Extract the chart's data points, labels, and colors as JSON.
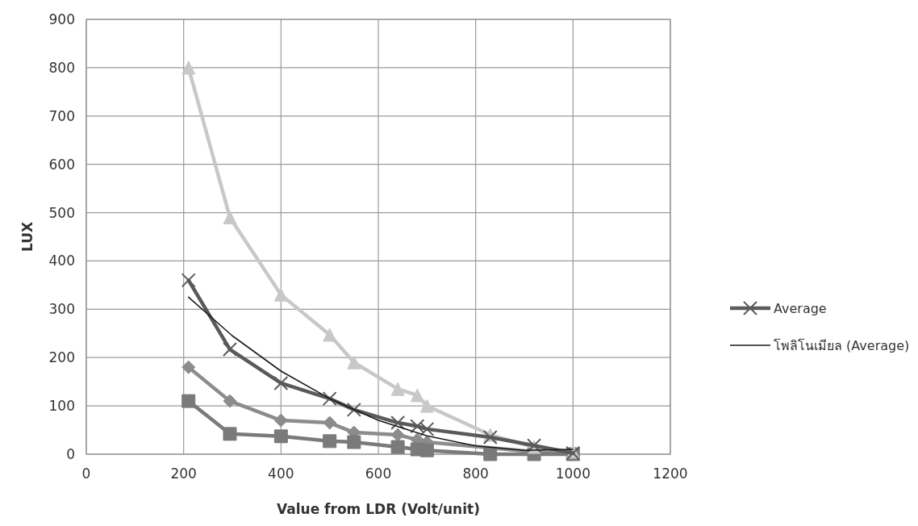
{
  "chart_data": {
    "type": "line",
    "xlabel": "Value from LDR (Volt/unit)",
    "ylabel": "LUX",
    "xlim": [
      0,
      1200
    ],
    "xticks": [
      0,
      200,
      400,
      600,
      800,
      1000,
      1200
    ],
    "ylim": [
      0,
      900
    ],
    "yticks": [
      0,
      100,
      200,
      300,
      400,
      500,
      600,
      700,
      800,
      900
    ],
    "grid": true,
    "legend": "right",
    "x": [
      210,
      295,
      400,
      500,
      550,
      640,
      680,
      700,
      830,
      920,
      1000
    ],
    "series": [
      {
        "color": "#8c8c8c",
        "marker": "diamond",
        "values": [
          180,
          110,
          70,
          65,
          45,
          40,
          30,
          25,
          null,
          5,
          0
        ]
      },
      {
        "color": "#7a7a7a",
        "marker": "square",
        "values": [
          110,
          42,
          37,
          27,
          25,
          15,
          10,
          8,
          0,
          0,
          0
        ]
      },
      {
        "color": "#c8c8c8",
        "marker": "triangle",
        "values": [
          800,
          490,
          330,
          247,
          190,
          135,
          122,
          100,
          40,
          15,
          5
        ]
      },
      {
        "name": "Average",
        "color": "#5a5a5a",
        "marker": "cross",
        "values": [
          360,
          217,
          147,
          115,
          92,
          65,
          58,
          52,
          35,
          18,
          2
        ]
      },
      {
        "name": "โพลิโนเมียล (Average)",
        "color": "#1a1a1a",
        "marker": "none",
        "x": [
          210,
          300,
          400,
          500,
          600,
          700,
          800,
          900,
          1000
        ],
        "values": [
          325,
          245,
          172,
          115,
          70,
          38,
          17,
          8,
          10
        ]
      }
    ]
  }
}
